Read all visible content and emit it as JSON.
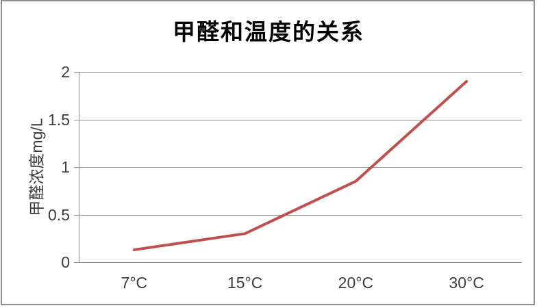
{
  "page": {
    "background_color": "#ffffff",
    "frame_border_color": "#8f8f8f"
  },
  "chart_data": {
    "type": "line",
    "title": "甲醛和温度的关系",
    "xlabel": "",
    "ylabel": "甲醛浓度mg/L",
    "categories": [
      "7°C",
      "15°C",
      "20°C",
      "30°C"
    ],
    "series": [
      {
        "values": [
          0.13,
          0.3,
          0.85,
          1.9
        ]
      }
    ],
    "ylim": [
      0,
      2
    ],
    "yticks": [
      "0",
      "0.5",
      "1",
      "1.5",
      "2"
    ],
    "grid": true,
    "legend_position": "none",
    "line_color": "#c0504d",
    "gridline_color": "#8c8c8c",
    "axis_color": "#8c8c8c",
    "tick_label_color": "#3c3c3c",
    "title_color": "#000000"
  }
}
